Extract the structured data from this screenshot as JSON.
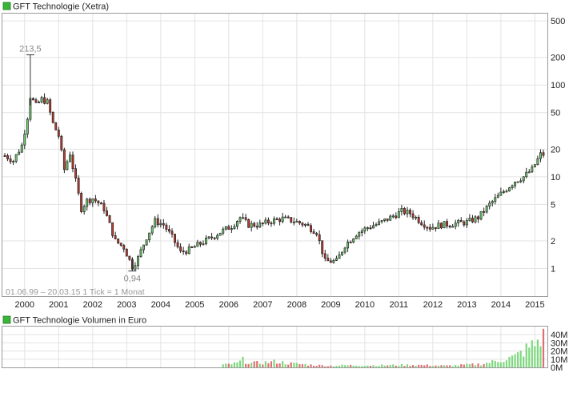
{
  "price_panel": {
    "legend_label": "GFT Technologie (Xetra)",
    "info_text": "01.06.99 – 20.03.15   1 Tick = 1 Monat",
    "high_label": "213,5",
    "low_label": "0,94",
    "y_tick_labels": [
      "500",
      "200",
      "100",
      "50",
      "20",
      "10",
      "5",
      "2",
      "1"
    ],
    "x_tick_labels": [
      "2000",
      "2001",
      "2002",
      "2003",
      "2004",
      "2005",
      "2006",
      "2007",
      "2008",
      "2009",
      "2010",
      "2011",
      "2012",
      "2013",
      "2014",
      "2015"
    ]
  },
  "volume_panel": {
    "legend_label": "GFT Technologie Volumen in Euro",
    "y_tick_labels": [
      "40M",
      "30M",
      "20M",
      "10M",
      "0M"
    ]
  },
  "colors": {
    "up_candle": "#6fd16f",
    "down_candle": "#c0392b",
    "legend_swatch": "#3ab53a",
    "grid": "#e3e3e3",
    "frame": "#9a9a9a",
    "volume_up": "#7ed87e",
    "volume_down": "#e07070"
  },
  "chart_data": [
    {
      "type": "candlestick",
      "title": "GFT Technologie (Xetra)",
      "y_scale": "log",
      "ylim": [
        0.5,
        600
      ],
      "period": "01.06.99 - 20.03.15",
      "tick_interval": "1 Monat",
      "high": 213.5,
      "low": 0.94,
      "monthly_close_path": [
        [
          "1999-06",
          17
        ],
        [
          "1999-09",
          15
        ],
        [
          "1999-12",
          22
        ],
        [
          "2000-02",
          45
        ],
        [
          "2000-03",
          75
        ],
        [
          "2000-05",
          60
        ],
        [
          "2000-07",
          70
        ],
        [
          "2000-09",
          65
        ],
        [
          "2000-11",
          38
        ],
        [
          "2001-01",
          28
        ],
        [
          "2001-03",
          12
        ],
        [
          "2001-05",
          18
        ],
        [
          "2001-07",
          9
        ],
        [
          "2001-09",
          4.5
        ],
        [
          "2001-11",
          5.5
        ],
        [
          "2002-01",
          5.8
        ],
        [
          "2002-03",
          5.2
        ],
        [
          "2002-05",
          4.5
        ],
        [
          "2002-07",
          3.0
        ],
        [
          "2002-09",
          2.0
        ],
        [
          "2002-12",
          1.7
        ],
        [
          "2003-03",
          1.05
        ],
        [
          "2003-05",
          1.3
        ],
        [
          "2003-08",
          2.2
        ],
        [
          "2003-11",
          3.3
        ],
        [
          "2004-02",
          3.0
        ],
        [
          "2004-05",
          2.2
        ],
        [
          "2004-08",
          1.5
        ],
        [
          "2004-11",
          1.6
        ],
        [
          "2005-02",
          1.8
        ],
        [
          "2005-06",
          2.1
        ],
        [
          "2005-10",
          2.5
        ],
        [
          "2006-02",
          2.9
        ],
        [
          "2006-05",
          3.6
        ],
        [
          "2006-08",
          3.0
        ],
        [
          "2006-12",
          3.0
        ],
        [
          "2007-04",
          3.3
        ],
        [
          "2007-08",
          3.5
        ],
        [
          "2007-12",
          3.3
        ],
        [
          "2008-04",
          3.0
        ],
        [
          "2008-08",
          2.5
        ],
        [
          "2008-11",
          1.2
        ],
        [
          "2009-03",
          1.2
        ],
        [
          "2009-06",
          1.8
        ],
        [
          "2009-10",
          2.4
        ],
        [
          "2010-02",
          2.8
        ],
        [
          "2010-06",
          3.1
        ],
        [
          "2010-10",
          3.6
        ],
        [
          "2011-02",
          4.2
        ],
        [
          "2011-05",
          4.0
        ],
        [
          "2011-09",
          3.2
        ],
        [
          "2011-12",
          2.8
        ],
        [
          "2012-04",
          3.0
        ],
        [
          "2012-09",
          3.1
        ],
        [
          "2013-01",
          3.2
        ],
        [
          "2013-05",
          3.6
        ],
        [
          "2013-09",
          5.0
        ],
        [
          "2014-01",
          6.5
        ],
        [
          "2014-06",
          9.0
        ],
        [
          "2014-09",
          10.0
        ],
        [
          "2014-12",
          12.0
        ],
        [
          "2015-03",
          17.5
        ]
      ]
    },
    {
      "type": "bar",
      "title": "GFT Technologie Volumen in Euro",
      "unit": "M Euro",
      "ylim": [
        0,
        40
      ],
      "start": "2005-11",
      "monthly_volume_path": [
        [
          "2005-11",
          3
        ],
        [
          "2006-04",
          5
        ],
        [
          "2006-06",
          9
        ],
        [
          "2006-09",
          5
        ],
        [
          "2007-02",
          6
        ],
        [
          "2007-06",
          7
        ],
        [
          "2007-10",
          5
        ],
        [
          "2008-02",
          4
        ],
        [
          "2008-06",
          3
        ],
        [
          "2008-12",
          2
        ],
        [
          "2009-06",
          2.5
        ],
        [
          "2010-06",
          2.5
        ],
        [
          "2011-06",
          3
        ],
        [
          "2012-06",
          2
        ],
        [
          "2013-06",
          4
        ],
        [
          "2013-12",
          8
        ],
        [
          "2014-06",
          13
        ],
        [
          "2014-10",
          22
        ],
        [
          "2015-01",
          28
        ],
        [
          "2015-03",
          36
        ]
      ]
    }
  ]
}
